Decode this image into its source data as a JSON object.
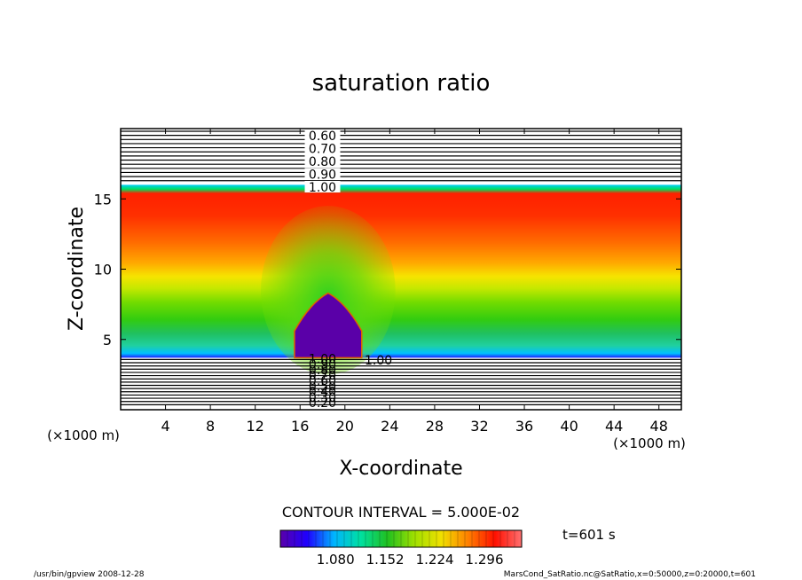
{
  "chart_data": {
    "type": "heatmap",
    "title": "saturation ratio",
    "xlabel": "X-coordinate",
    "ylabel": "Z-coordinate",
    "x_unit": "(×1000 m)",
    "z_unit": "(×1000 m)",
    "xlim": [
      0,
      50
    ],
    "ylim": [
      0,
      20
    ],
    "x_ticks": [
      4,
      8,
      12,
      16,
      20,
      24,
      28,
      32,
      36,
      40,
      44,
      48
    ],
    "y_ticks": [
      5,
      10,
      15
    ],
    "contour_interval_text": "CONTOUR INTERVAL = 5.000E-02",
    "time_label": "t=601 s",
    "colorbar": {
      "tick_labels": [
        "1.080",
        "1.152",
        "1.224",
        "1.296"
      ],
      "range": [
        1.0,
        1.35
      ],
      "colors": [
        "#5a00a8",
        "#1f00ff",
        "#00b4ff",
        "#00e0a0",
        "#20c020",
        "#a0e000",
        "#f0e000",
        "#ff8000",
        "#ff1000",
        "#ff7070"
      ]
    },
    "upper_contour_labels": [
      "0.60",
      "0.70",
      "0.80",
      "0.90",
      "1.00"
    ],
    "lower_contour_labels": [
      "0.20",
      "0.30",
      "0.40",
      "0.50",
      "0.60",
      "0.70",
      "0.80",
      "0.90",
      "1.00"
    ],
    "inline_contour_label": "1.00",
    "structure": {
      "supersaturated_layer_z_range": [
        3.7,
        16.0
      ],
      "max_layer_center_z": 13.5,
      "plume_center_x": 18.5,
      "plume_top_z": 8.3,
      "plume_half_width": 3.0
    }
  },
  "footer": {
    "left": "/usr/bin/gpview   2008-12-28",
    "right": "MarsCond_SatRatio.nc@SatRatio,x=0:50000,z=0:20000,t=601"
  }
}
